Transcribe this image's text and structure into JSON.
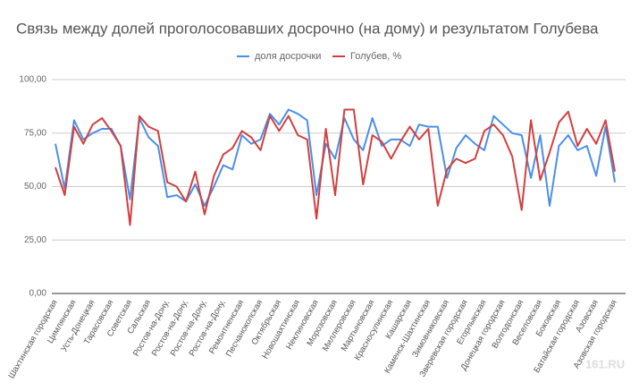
{
  "chart_data": {
    "type": "line",
    "title": "Связь между долей проголосовавших досрочно (на дому) и результатом Голубева",
    "watermark": "161.RU",
    "categories": [
      "Шахтинская городская",
      null,
      "Цимлянская",
      null,
      "Усть-Донецкая",
      null,
      "Тарасовская",
      null,
      "Советская",
      null,
      "Сальская",
      null,
      "Ростов-на-Дону,",
      null,
      "Ростов-на-Дону,",
      null,
      "Ростов-на-Дону,",
      null,
      "Ростов-на-Дону,",
      null,
      "Ремонтненская",
      null,
      "Песчанокопская",
      null,
      "Октябрьская",
      null,
      "Новошахтинская",
      null,
      "Неклиновская",
      null,
      "Морозовская",
      null,
      "Миллеровская",
      null,
      "Мартыновская",
      null,
      "Красносулинская",
      null,
      "Кашарская",
      null,
      "Каменск-Шахтинская",
      null,
      "Зимовниковская",
      null,
      "Зверевская городская",
      null,
      "Егорлыкская",
      null,
      "Донецкая городская",
      null,
      "Волгодонская",
      null,
      "Веселовская",
      null,
      "Боковская",
      null,
      "Батайская городская",
      null,
      "Азовская",
      null,
      "Азовская городская"
    ],
    "series": [
      {
        "name": "доля досрочки",
        "color": "#4a8fe7",
        "values": [
          70,
          49,
          81,
          72,
          75,
          77,
          77,
          69,
          44,
          82,
          73,
          69,
          45,
          46,
          43,
          51,
          41,
          50,
          60,
          58,
          74,
          70,
          72,
          84,
          79,
          86,
          84,
          81,
          46,
          70,
          63,
          82,
          72,
          67,
          82,
          69,
          72,
          72,
          69,
          79,
          78,
          78,
          54,
          68,
          74,
          70,
          67,
          83,
          79,
          75,
          74,
          54,
          74,
          41,
          69,
          74,
          67,
          69,
          55,
          78,
          52
        ]
      },
      {
        "name": "Голубев, %",
        "color": "#d33f3f",
        "values": [
          59,
          46,
          78,
          70,
          79,
          82,
          76,
          69,
          32,
          83,
          78,
          76,
          52,
          50,
          43,
          57,
          37,
          55,
          65,
          68,
          76,
          73,
          67,
          83,
          76,
          83,
          74,
          72,
          35,
          77,
          46,
          86,
          86,
          51,
          74,
          71,
          63,
          71,
          78,
          72,
          77,
          41,
          58,
          63,
          61,
          63,
          76,
          79,
          74,
          64,
          39,
          81,
          53,
          66,
          80,
          85,
          69,
          77,
          70,
          81,
          57
        ]
      }
    ],
    "ylim": [
      0,
      100
    ],
    "yticks": [
      {
        "value": 0,
        "label": "0,00"
      },
      {
        "value": 25,
        "label": "25,00"
      },
      {
        "value": 50,
        "label": "50,00"
      },
      {
        "value": 75,
        "label": "75,00"
      },
      {
        "value": 100,
        "label": "100,00"
      }
    ],
    "grid": true,
    "legend": "top"
  }
}
